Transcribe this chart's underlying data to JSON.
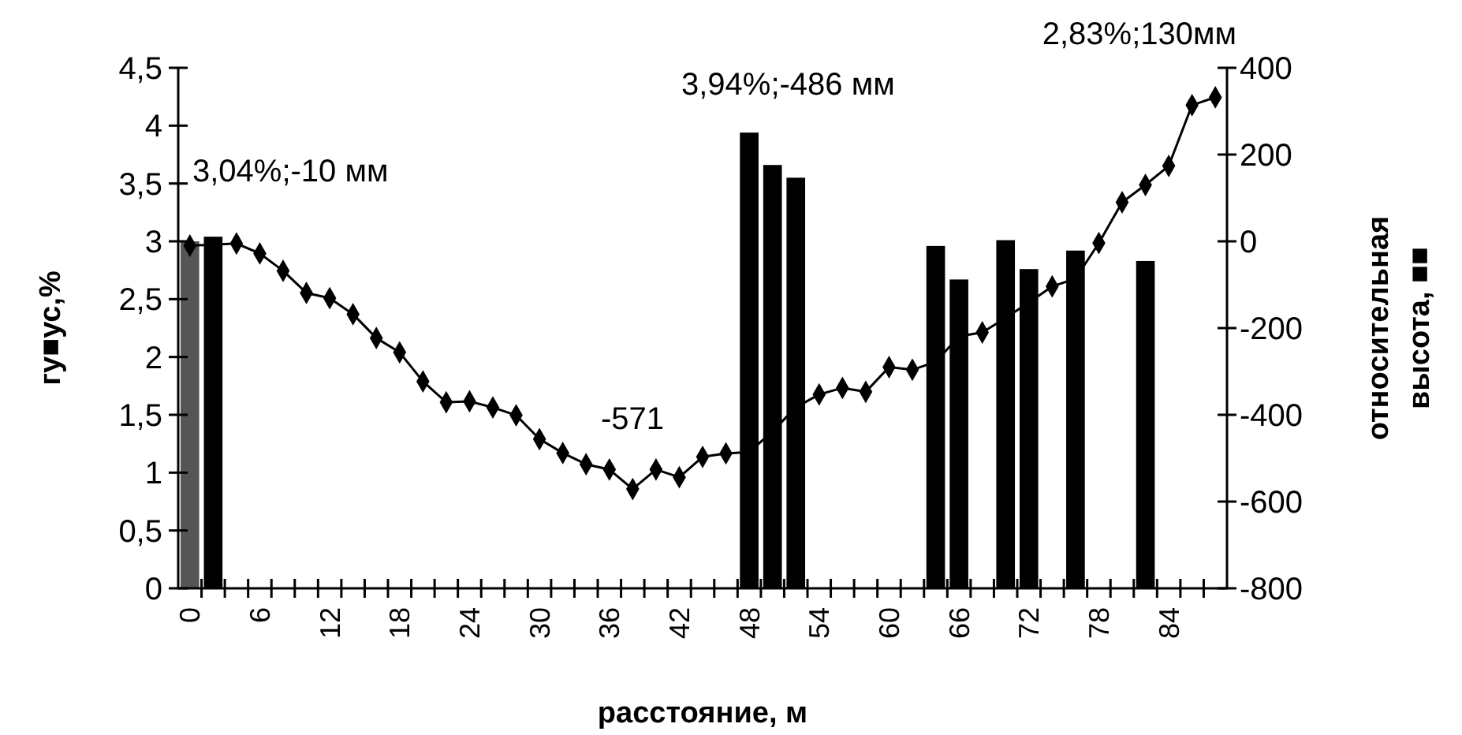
{
  "chart_data": {
    "type": "bar",
    "xlabel": "расстояние, м",
    "ylabel": "гу■ус,%",
    "y2label": "относительная\nвысота, ■■",
    "categories": [
      "0",
      null,
      null,
      "6",
      null,
      null,
      "12",
      null,
      null,
      "18",
      null,
      null,
      "24",
      null,
      null,
      "30",
      null,
      null,
      "36",
      null,
      null,
      "42",
      null,
      null,
      "48",
      null,
      null,
      "54",
      null,
      null,
      "60",
      null,
      null,
      "66",
      null,
      null,
      "72",
      null,
      null,
      "78",
      null,
      null,
      "84",
      null,
      null
    ],
    "ylim": [
      0,
      4.5
    ],
    "yticks": [
      0,
      {
        "value": 0.5,
        "label": "0,5"
      },
      1,
      {
        "value": 1.5,
        "label": "1,5"
      },
      2,
      {
        "value": 2.5,
        "label": "2,5"
      },
      3,
      {
        "value": 3.5,
        "label": "3,5"
      },
      4,
      {
        "value": 4.5,
        "label": "4,5"
      }
    ],
    "y2lim": [
      -800,
      400
    ],
    "y2ticks": [
      -800,
      -600,
      -400,
      -200,
      0,
      200,
      400
    ],
    "series": [
      {
        "values": [
          3.0,
          3.04,
          null,
          null,
          null,
          null,
          null,
          null,
          null,
          null,
          null,
          null,
          null,
          null,
          null,
          null,
          null,
          null,
          null,
          null,
          null,
          null,
          null,
          null,
          3.94,
          3.66,
          3.55,
          null,
          null,
          null,
          null,
          null,
          2.96,
          2.67,
          null,
          3.01,
          2.76,
          null,
          2.92,
          null,
          null,
          2.83,
          null,
          null,
          null
        ],
        "colors": [
          "#555555",
          "#000000",
          null,
          null,
          null,
          null,
          null,
          null,
          null,
          null,
          null,
          null,
          null,
          null,
          null,
          null,
          null,
          null,
          null,
          null,
          null,
          null,
          null,
          null,
          "#000000",
          "#000000",
          "#000000",
          null,
          null,
          null,
          null,
          null,
          "#000000",
          "#000000",
          null,
          "#000000",
          "#000000",
          null,
          "#000000",
          null,
          null,
          "#000000",
          null,
          null,
          null
        ]
      },
      {
        "type": "line",
        "axis": "y2",
        "color": "#000000",
        "marker": "diamond",
        "values": [
          -10,
          null,
          -5,
          -28,
          -68,
          -119,
          -131,
          -168,
          -223,
          -256,
          -323,
          -371,
          -369,
          -383,
          -401,
          -456,
          -488,
          -514,
          -526,
          -571,
          -526,
          -544,
          -497,
          -489,
          -486,
          -438,
          -383,
          -353,
          -338,
          -347,
          -290,
          -296,
          -278,
          -219,
          -210,
          -177,
          -141,
          -104,
          -86,
          -4,
          90,
          130,
          174,
          314,
          332
        ]
      }
    ],
    "annotations": [
      "3,04%;-10 мм",
      "3,94%;-486 мм",
      "-571",
      "2,83%;130мм"
    ]
  }
}
